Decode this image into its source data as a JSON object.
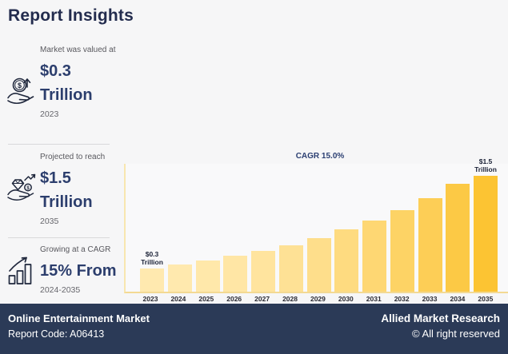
{
  "page": {
    "title": "Report Insights"
  },
  "sidebar": {
    "items": [
      {
        "icon": "hand-coin-rise-icon",
        "label": "Market was valued at",
        "value": "$0.3 Trillion",
        "period": "2023"
      },
      {
        "icon": "hand-diamond-rise-icon",
        "label": "Projected to reach",
        "value": "$1.5 Trillion",
        "period": "2035"
      },
      {
        "icon": "growth-bars-icon",
        "label": "Growing at a CAGR",
        "value": "15% From",
        "period": "2024-2035"
      }
    ]
  },
  "chart_data": {
    "type": "bar",
    "title": "",
    "xlabel": "",
    "ylabel": "",
    "unit": "$ Trillion",
    "annotation": "CAGR 15.0%",
    "categories": [
      "2023",
      "2024",
      "2025",
      "2026",
      "2027",
      "2028",
      "2029",
      "2030",
      "2031",
      "2032",
      "2033",
      "2034",
      "2035"
    ],
    "values": [
      0.3,
      0.35,
      0.4,
      0.46,
      0.53,
      0.6,
      0.69,
      0.8,
      0.92,
      1.05,
      1.21,
      1.39,
      1.5
    ],
    "ylim": [
      0,
      1.65
    ],
    "grid": false,
    "legend": false,
    "point_labels": [
      {
        "index": 0,
        "lines": [
          "$0.3",
          "Trillion"
        ]
      },
      {
        "index": 12,
        "lines": [
          "$1.5",
          "Trillion"
        ]
      }
    ],
    "bar_color_start": "#ffe9af",
    "bar_color_end": "#fcc433",
    "axis_color": "#f3d993"
  },
  "footer": {
    "market": "Online Entertainment Market",
    "report_code": "Report Code: A06413",
    "brand": "Allied Market Research",
    "rights": "© All right reserved"
  },
  "colors": {
    "title_navy": "#232c4e",
    "value_navy": "#2c3e6d",
    "cagr_navy": "#2b3f72",
    "footer_bg": "#2b3a57",
    "page_bg": "#f6f6f7",
    "muted_text": "#58585e"
  }
}
